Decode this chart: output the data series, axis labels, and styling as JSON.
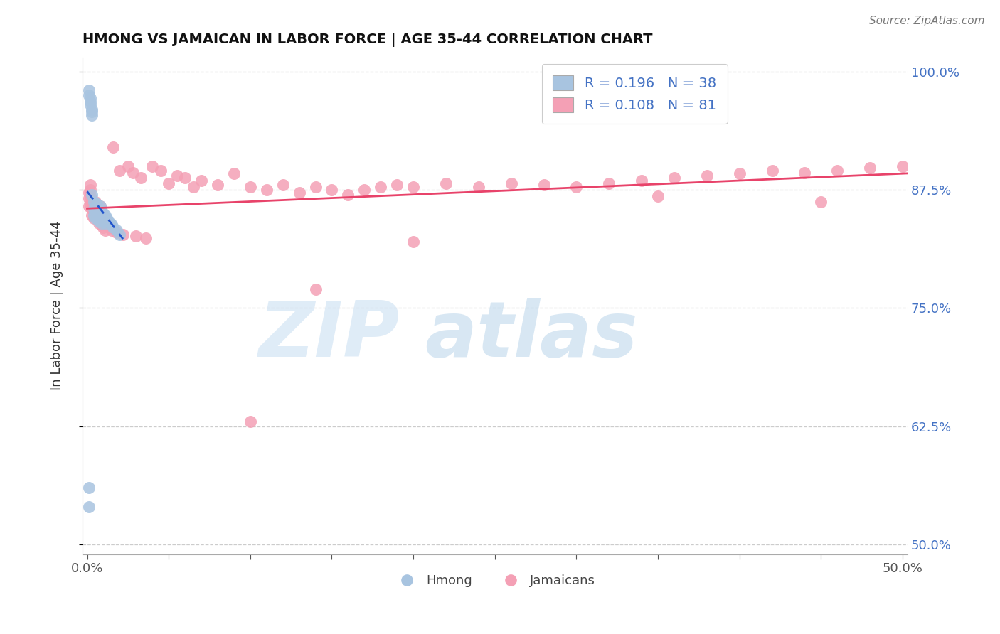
{
  "title": "HMONG VS JAMAICAN IN LABOR FORCE | AGE 35-44 CORRELATION CHART",
  "source": "Source: ZipAtlas.com",
  "ylabel": "In Labor Force | Age 35-44",
  "xlim": [
    -0.003,
    0.503
  ],
  "ylim": [
    0.49,
    1.015
  ],
  "yticks": [
    0.5,
    0.625,
    0.75,
    0.875,
    1.0
  ],
  "ytick_labels": [
    "50.0%",
    "62.5%",
    "75.0%",
    "87.5%",
    "100.0%"
  ],
  "xtick_positions": [
    0.0,
    0.05,
    0.1,
    0.15,
    0.2,
    0.25,
    0.3,
    0.35,
    0.4,
    0.45,
    0.5
  ],
  "xticklabels": [
    "0.0%",
    "",
    "",
    "",
    "",
    "",
    "",
    "",
    "",
    "",
    "50.0%"
  ],
  "hmong_R": 0.196,
  "hmong_N": 38,
  "jamaican_R": 0.108,
  "jamaican_N": 81,
  "hmong_color": "#a8c4e0",
  "jamaican_color": "#f4a0b5",
  "hmong_trend_color": "#2255cc",
  "jamaican_trend_color": "#e8436a",
  "legend_label_hmong": "Hmong",
  "legend_label_jamaican": "Jamaicans",
  "hmong_x": [
    0.001,
    0.001,
    0.002,
    0.002,
    0.002,
    0.003,
    0.003,
    0.003,
    0.003,
    0.004,
    0.004,
    0.004,
    0.005,
    0.005,
    0.005,
    0.006,
    0.006,
    0.006,
    0.007,
    0.007,
    0.007,
    0.008,
    0.008,
    0.009,
    0.009,
    0.01,
    0.01,
    0.011,
    0.011,
    0.012,
    0.013,
    0.014,
    0.015,
    0.016,
    0.018,
    0.02,
    0.001,
    0.001
  ],
  "hmong_y": [
    0.98,
    0.975,
    0.968,
    0.972,
    0.965,
    0.96,
    0.958,
    0.954,
    0.87,
    0.862,
    0.855,
    0.848,
    0.858,
    0.852,
    0.845,
    0.86,
    0.854,
    0.848,
    0.855,
    0.848,
    0.842,
    0.858,
    0.845,
    0.852,
    0.84,
    0.85,
    0.843,
    0.848,
    0.84,
    0.845,
    0.842,
    0.84,
    0.838,
    0.835,
    0.832,
    0.828,
    0.56,
    0.54
  ],
  "jamaican_x": [
    0.001,
    0.001,
    0.001,
    0.002,
    0.002,
    0.002,
    0.002,
    0.003,
    0.003,
    0.003,
    0.004,
    0.004,
    0.004,
    0.005,
    0.005,
    0.005,
    0.006,
    0.006,
    0.007,
    0.007,
    0.008,
    0.008,
    0.009,
    0.009,
    0.01,
    0.01,
    0.011,
    0.011,
    0.012,
    0.013,
    0.014,
    0.015,
    0.016,
    0.018,
    0.02,
    0.022,
    0.025,
    0.028,
    0.03,
    0.033,
    0.036,
    0.04,
    0.045,
    0.05,
    0.055,
    0.06,
    0.065,
    0.07,
    0.08,
    0.09,
    0.1,
    0.11,
    0.12,
    0.13,
    0.14,
    0.15,
    0.16,
    0.17,
    0.18,
    0.19,
    0.2,
    0.22,
    0.24,
    0.26,
    0.28,
    0.3,
    0.32,
    0.34,
    0.36,
    0.38,
    0.4,
    0.42,
    0.44,
    0.46,
    0.48,
    0.5,
    0.14,
    0.2,
    0.1,
    0.35,
    0.45
  ],
  "jamaican_y": [
    0.872,
    0.866,
    0.858,
    0.88,
    0.875,
    0.868,
    0.86,
    0.862,
    0.855,
    0.848,
    0.858,
    0.852,
    0.845,
    0.862,
    0.855,
    0.848,
    0.86,
    0.848,
    0.852,
    0.84,
    0.858,
    0.845,
    0.85,
    0.838,
    0.848,
    0.835,
    0.845,
    0.832,
    0.84,
    0.838,
    0.835,
    0.832,
    0.92,
    0.83,
    0.895,
    0.828,
    0.9,
    0.893,
    0.826,
    0.888,
    0.824,
    0.9,
    0.895,
    0.882,
    0.89,
    0.888,
    0.878,
    0.885,
    0.88,
    0.892,
    0.878,
    0.875,
    0.88,
    0.872,
    0.878,
    0.875,
    0.87,
    0.875,
    0.878,
    0.88,
    0.878,
    0.882,
    0.878,
    0.882,
    0.88,
    0.878,
    0.882,
    0.885,
    0.888,
    0.89,
    0.892,
    0.895,
    0.893,
    0.895,
    0.898,
    0.9,
    0.77,
    0.82,
    0.63,
    0.868,
    0.862
  ]
}
